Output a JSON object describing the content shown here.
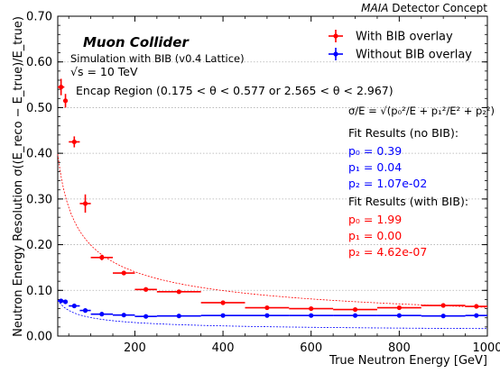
{
  "header": {
    "experiment": "MAIA",
    "subtitle": "Detector Concept"
  },
  "annotations": {
    "title": "Muon Collider",
    "subtitle": "Simulation with BIB (v0.4 Lattice)",
    "energy": "√s = 10 TeV",
    "region": "Encap Region (0.175 < θ < 0.577 or 2.565 < θ < 2.967)",
    "formula": "σ/E = √(p₀²/E + p₁²/E² + p₂²)",
    "fit_nobib_header": "Fit Results (no BIB):",
    "fit_nobib": [
      "p₀ = 0.39",
      "p₁ = 0.04",
      "p₂ = 1.07e-02"
    ],
    "fit_bib_header": "Fit Results (with BIB):",
    "fit_bib": [
      "p₀ = 1.99",
      "p₁ = 0.00",
      "p₂ = 4.62e-07"
    ]
  },
  "colors": {
    "with_bib": "#ff0000",
    "without_bib": "#0000ff",
    "grid": "#b0b0b0",
    "axis": "#000000"
  },
  "chart_data": {
    "type": "scatter",
    "xlabel": "True Neutron Energy [GeV]",
    "ylabel": "Neutron Energy Resolution σ((E_reco − E_true)/E_true)",
    "xlim": [
      25,
      1000
    ],
    "ylim": [
      0,
      0.7
    ],
    "xticks": [
      200,
      400,
      600,
      800,
      1000
    ],
    "yticks": [
      0.0,
      0.1,
      0.2,
      0.3,
      0.4,
      0.5,
      0.6,
      0.7
    ],
    "ytick_labels": [
      "0.00",
      "0.10",
      "0.20",
      "0.30",
      "0.40",
      "0.50",
      "0.60",
      "0.70"
    ],
    "grid": "horizontal dotted",
    "legend_position": "top-right",
    "series": [
      {
        "name": "With BIB overlay",
        "color": "#ff0000",
        "marker": "errorbar",
        "x": [
          32.5,
          42.5,
          62.5,
          87.5,
          125,
          175,
          225,
          300,
          400,
          500,
          600,
          700,
          800,
          900,
          975
        ],
        "xerr": [
          7.5,
          2.5,
          12.5,
          12.5,
          25,
          25,
          25,
          50,
          50,
          50,
          50,
          50,
          50,
          50,
          25
        ],
        "y": [
          0.545,
          0.515,
          0.425,
          0.29,
          0.172,
          0.138,
          0.102,
          0.097,
          0.073,
          0.062,
          0.06,
          0.058,
          0.062,
          0.067,
          0.065
        ],
        "yerr": [
          0.018,
          0.015,
          0.012,
          0.02,
          0.006,
          0.004,
          0.003,
          0.003,
          0.002,
          0.002,
          0.002,
          0.002,
          0.002,
          0.002,
          0.002
        ]
      },
      {
        "name": "Without BIB overlay",
        "color": "#0000ff",
        "marker": "errorbar",
        "x": [
          32.5,
          42.5,
          62.5,
          87.5,
          125,
          175,
          225,
          300,
          400,
          500,
          600,
          700,
          800,
          900,
          975
        ],
        "xerr": [
          7.5,
          2.5,
          12.5,
          12.5,
          25,
          25,
          25,
          50,
          50,
          50,
          50,
          50,
          50,
          50,
          25
        ],
        "y": [
          0.077,
          0.075,
          0.066,
          0.056,
          0.048,
          0.046,
          0.043,
          0.044,
          0.045,
          0.045,
          0.045,
          0.045,
          0.045,
          0.044,
          0.045
        ],
        "yerr": [
          0.003,
          0.003,
          0.002,
          0.002,
          0.001,
          0.001,
          0.001,
          0.001,
          0.001,
          0.001,
          0.001,
          0.001,
          0.001,
          0.001,
          0.001
        ]
      }
    ],
    "fits": [
      {
        "series": "With BIB overlay",
        "p0": 1.99,
        "p1": 0.0,
        "p2": 4.62e-07,
        "style": "dashed",
        "color": "#ff0000"
      },
      {
        "series": "Without BIB overlay",
        "p0": 0.39,
        "p1": 0.04,
        "p2": 0.0107,
        "style": "dashed",
        "color": "#0000ff"
      }
    ]
  }
}
